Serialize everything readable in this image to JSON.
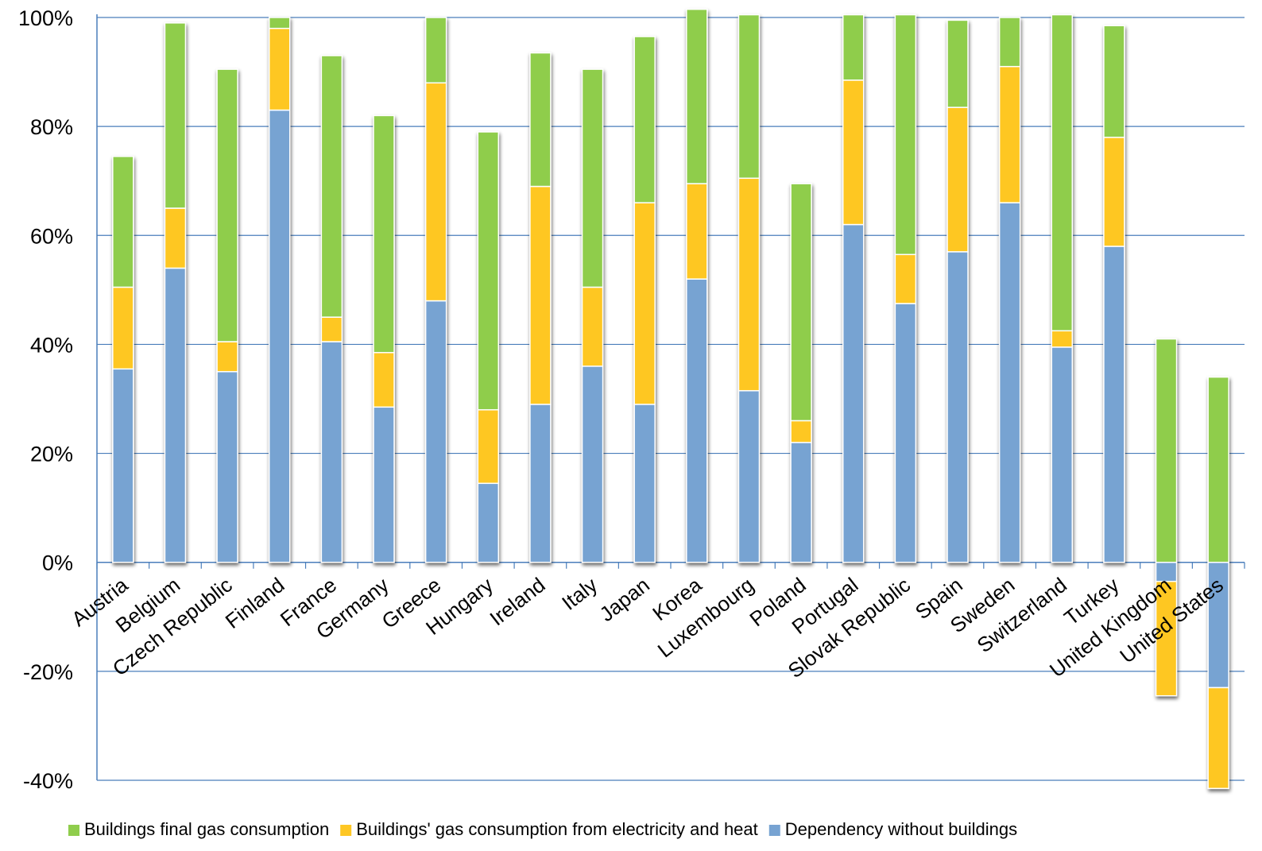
{
  "chart_data": {
    "type": "bar",
    "stacked": true,
    "categories": [
      "Austria",
      "Belgium",
      "Czech Republic",
      "Finland",
      "France",
      "Germany",
      "Greece",
      "Hungary",
      "Ireland",
      "Italy",
      "Japan",
      "Korea",
      "Luxembourg",
      "Poland",
      "Portugal",
      "Slovak Republic",
      "Spain",
      "Sweden",
      "Switzerland",
      "Turkey",
      "United Kingdom",
      "United States"
    ],
    "series": [
      {
        "name": "Dependency without buildings",
        "color": "#77a3d2",
        "values": [
          35.5,
          54,
          35,
          83,
          40.5,
          28.5,
          48,
          14.5,
          29,
          36,
          29,
          52,
          31.5,
          22,
          62,
          47.5,
          57,
          66,
          39.5,
          58,
          -3.5,
          -23
        ]
      },
      {
        "name": "Buildings' gas consumption from electricity and heat",
        "color": "#fec724",
        "values": [
          15,
          11,
          5.5,
          15,
          4.5,
          10,
          40,
          13.5,
          40,
          14.5,
          37,
          17.5,
          39,
          4,
          26.5,
          9,
          26.5,
          25,
          3,
          20,
          -21,
          -18.5
        ]
      },
      {
        "name": "Buildings final gas consumption",
        "color": "#8fcd4c",
        "values": [
          24,
          34,
          50,
          2,
          48,
          43.5,
          12,
          51,
          24.5,
          40,
          30.5,
          32,
          30,
          43.5,
          12,
          44,
          16,
          9,
          58,
          20.5,
          41,
          34
        ]
      }
    ],
    "legend_order": [
      "Buildings final gas consumption",
      "Buildings' gas consumption from electricity and heat",
      "Dependency without buildings"
    ],
    "y_ticks": [
      "-40%",
      "-20%",
      "0%",
      "20%",
      "40%",
      "60%",
      "80%",
      "100%"
    ],
    "ylim": [
      -40,
      100
    ],
    "grid": true,
    "legend_position": "bottom"
  }
}
